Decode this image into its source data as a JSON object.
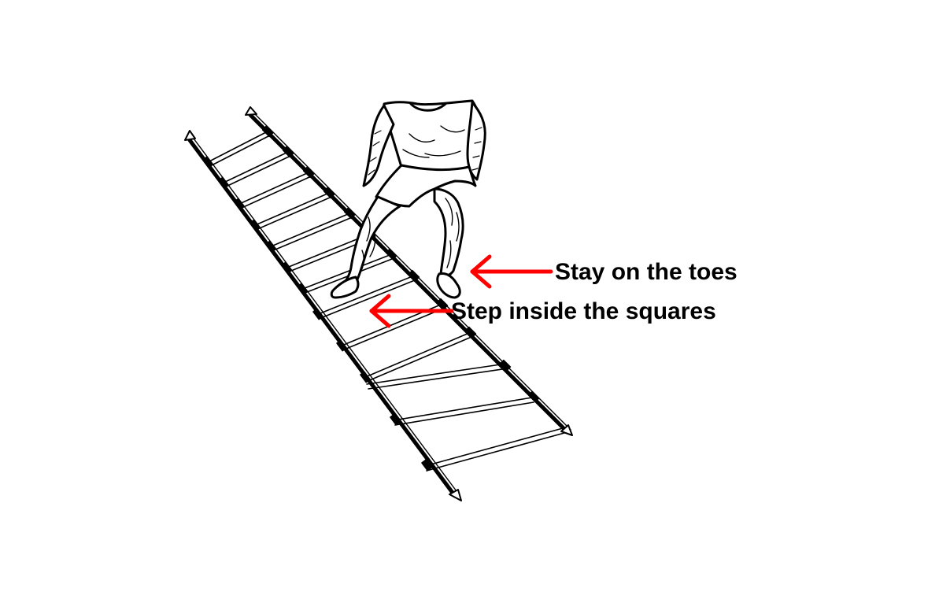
{
  "colors": {
    "background": "#ffffff",
    "ink": "#000000",
    "arrow": "#ff0000"
  },
  "annotations": {
    "toes": {
      "text": "Stay on the toes"
    },
    "squares": {
      "text": "Step inside the squares"
    }
  },
  "illustration": {
    "subject": "agility ladder drill",
    "ladder_rungs_visible": 11
  }
}
